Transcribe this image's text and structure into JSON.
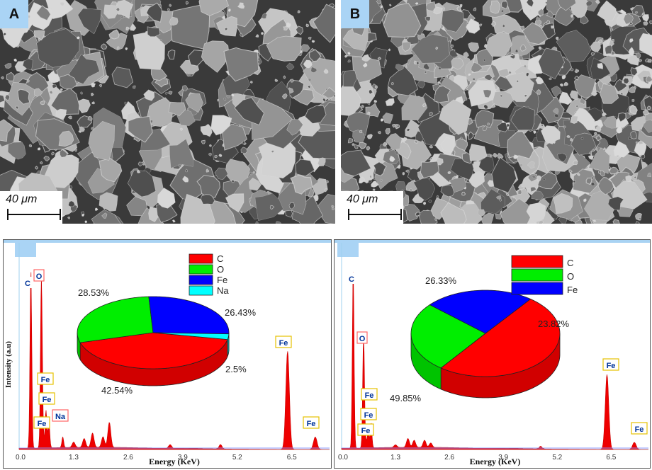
{
  "panels": [
    {
      "letter": "A",
      "scale_label": "40 μm"
    },
    {
      "letter": "B",
      "scale_label": "40 μm"
    }
  ],
  "chart_data": [
    {
      "type": "line",
      "xlabel": "Energy (KeV)",
      "ylabel": "Intensity (a.u)",
      "x_ticks": [
        "0.0",
        "1.3",
        "2.6",
        "3.9",
        "5.2",
        "6.5"
      ],
      "peaks": [
        {
          "label": "C",
          "x": 0.28,
          "height": 1.0
        },
        {
          "label": "O",
          "x": 0.53,
          "height": 0.96
        },
        {
          "label": "Fe",
          "x": 0.64,
          "height": 0.21
        },
        {
          "label": "Fe",
          "x": 0.71,
          "height": 0.14
        },
        {
          "label": "Fe",
          "x": 0.57,
          "height": 0.07
        },
        {
          "label": "Na",
          "x": 1.04,
          "height": 0.06
        },
        {
          "label": "Fe",
          "x": 6.4,
          "height": 0.55
        },
        {
          "label": "Fe",
          "x": 7.06,
          "height": 0.07
        }
      ],
      "pie": {
        "type": "pie",
        "labels": [
          "C",
          "O",
          "Fe",
          "Na"
        ],
        "values": [
          42.54,
          28.53,
          26.43,
          2.5
        ],
        "value_labels": [
          "42.54%",
          "28.53%",
          "26.43%",
          "2.5%"
        ],
        "colors": [
          "#ff0000",
          "#00ee00",
          "#0000ff",
          "#00ffff"
        ],
        "legend": "top"
      }
    },
    {
      "type": "line",
      "xlabel": "Energy (KeV)",
      "ylabel": "",
      "x_ticks": [
        "0.0",
        "1.3",
        "2.6",
        "3.9",
        "5.2",
        "6.5"
      ],
      "peaks": [
        {
          "label": "C",
          "x": 0.28,
          "height": 1.0
        },
        {
          "label": "O",
          "x": 0.53,
          "height": 0.63
        },
        {
          "label": "Fe",
          "x": 0.71,
          "height": 0.14
        },
        {
          "label": "Fe",
          "x": 0.64,
          "height": 0.09
        },
        {
          "label": "Fe",
          "x": 0.58,
          "height": 0.04
        },
        {
          "label": "Fe",
          "x": 6.4,
          "height": 0.42
        },
        {
          "label": "Fe",
          "x": 7.06,
          "height": 0.04
        }
      ],
      "pie": {
        "type": "pie",
        "labels": [
          "C",
          "O",
          "Fe"
        ],
        "values": [
          49.85,
          26.33,
          23.82
        ],
        "value_labels": [
          "49.85%",
          "26.33%",
          "23.82%"
        ],
        "colors": [
          "#ff0000",
          "#00ee00",
          "#0000ff"
        ],
        "legend": "top"
      }
    }
  ]
}
